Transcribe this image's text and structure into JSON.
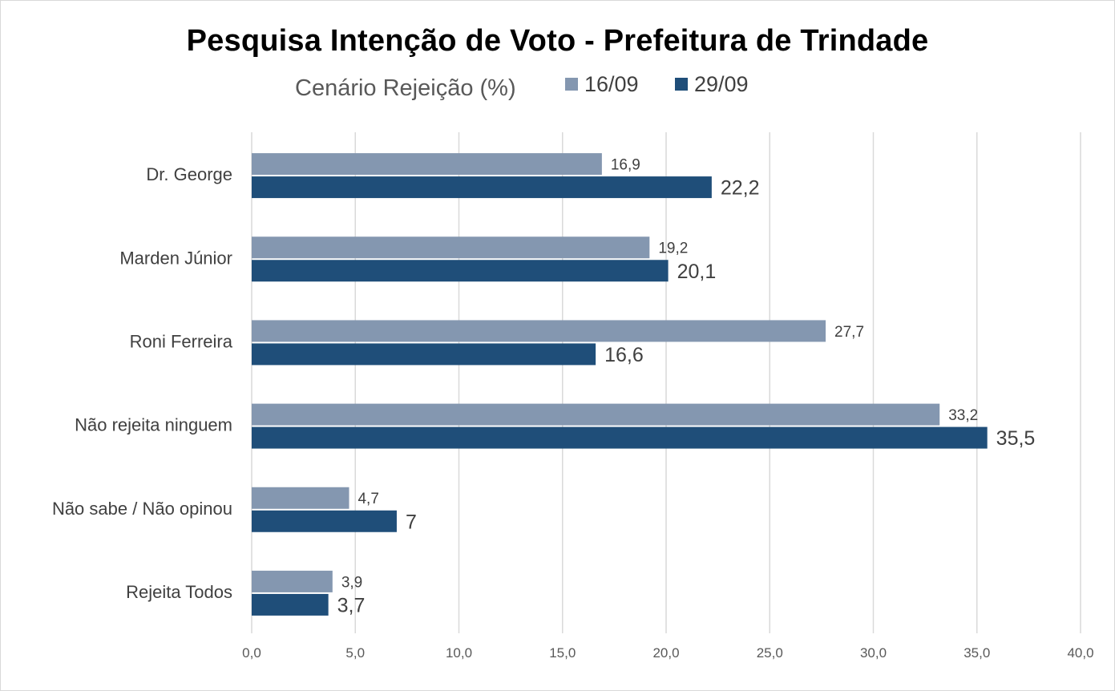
{
  "chart_data": {
    "type": "bar",
    "orientation": "horizontal",
    "title": "Pesquisa Intenção de Voto - Prefeitura de Trindade",
    "subtitle": "Cenário Rejeição (%)",
    "categories": [
      "Dr. George",
      "Marden Júnior",
      "Roni Ferreira",
      "Não rejeita ninguem",
      "Não sabe / Não opinou",
      "Rejeita Todos"
    ],
    "series": [
      {
        "name": "16/09",
        "color": "#8497b0",
        "values": [
          16.9,
          19.2,
          27.7,
          33.2,
          4.7,
          3.9
        ],
        "labels": [
          "16,9",
          "19,2",
          "27,7",
          "33,2",
          "4,7",
          "3,9"
        ]
      },
      {
        "name": "29/09",
        "color": "#1f4e79",
        "values": [
          22.2,
          20.1,
          16.6,
          35.5,
          7,
          3.7
        ],
        "labels": [
          "22,2",
          "20,1",
          "16,6",
          "35,5",
          "7",
          "3,7"
        ]
      }
    ],
    "xlim": [
      0,
      40
    ],
    "xticks": [
      "0,0",
      "5,0",
      "10,0",
      "15,0",
      "20,0",
      "25,0",
      "30,0",
      "35,0",
      "40,0"
    ],
    "grid": true,
    "legend_position": "top"
  }
}
